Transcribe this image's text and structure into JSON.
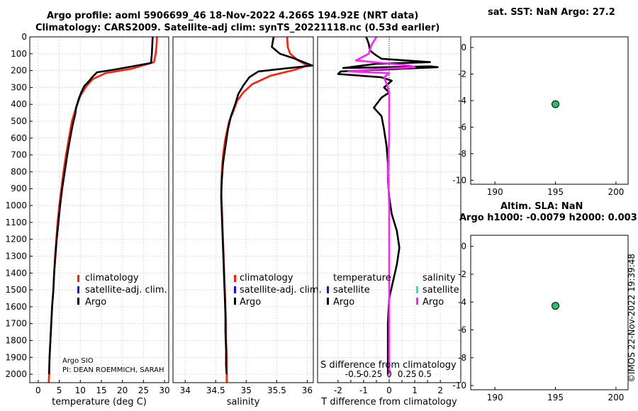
{
  "titles": {
    "line1": "Argo profile: aoml 5906699_46 18-Nov-2022 4.266S 194.92E (NRT data)",
    "line2": "Climatology: CARS2009. Satellite-adj clim: synTS_20221118.nc (0.53d earlier)",
    "sst": "sat. SST: NaN Argo: 27.2",
    "sla1": "Altim. SLA: NaN",
    "sla2": "Argo h1000: -0.0079 h2000: 0.003",
    "timestamp": "©IMOS 22-Nov-2022 19:39:48"
  },
  "annotations": {
    "pi_line1": "Argo SIO",
    "pi_line2": "PI: DEAN ROEMMICH, SARAH",
    "sdiff_title": "S difference from climatology"
  },
  "colors": {
    "climatology": "#ff2010",
    "satellite": "#1010ff",
    "argo": "#000000",
    "salinity_sat": "#20e0e0",
    "salinity_argo": "#ff20ff",
    "dot": "#20c070"
  },
  "legends": {
    "panel1": [
      "climatology",
      "satellite-adj. clim.",
      "Argo"
    ],
    "panel2": [
      "climatology",
      "satellite-adj. clim.",
      "Argo"
    ],
    "panel3_temp_header": "temperature",
    "panel3_temp": [
      "satellite",
      "Argo"
    ],
    "panel3_sal_header": "salinity",
    "panel3_sal": [
      "satellite",
      "Argo"
    ]
  },
  "chart_data": [
    {
      "type": "line",
      "name": "temperature",
      "xlabel": "temperature (deg C)",
      "ylabel": "",
      "xlim": [
        -2,
        31
      ],
      "ylim": [
        2050,
        0
      ],
      "xticks": [
        0,
        5,
        10,
        15,
        20,
        25,
        30
      ],
      "xtick_labels": [
        "0",
        "5",
        "10",
        "15",
        "20",
        "25",
        "30"
      ],
      "yticks": [
        0,
        100,
        200,
        300,
        400,
        500,
        600,
        700,
        800,
        900,
        1000,
        1100,
        1200,
        1300,
        1400,
        1500,
        1600,
        1700,
        1800,
        1900,
        2000
      ],
      "ytick_labels": [
        "0",
        "100",
        "200",
        "300",
        "400",
        "500",
        "600",
        "700",
        "800",
        "900",
        "1000",
        "1100",
        "1200",
        "1300",
        "1400",
        "1500",
        "1600",
        "1700",
        "1800",
        "1900",
        "2000"
      ],
      "grid": true,
      "series": [
        {
          "name": "climatology",
          "color": "#ff2010",
          "points": [
            [
              28.2,
              0
            ],
            [
              28.1,
              50
            ],
            [
              27.9,
              100
            ],
            [
              27.5,
              150
            ],
            [
              22,
              190
            ],
            [
              16,
              215
            ],
            [
              13,
              250
            ],
            [
              11.5,
              290
            ],
            [
              10,
              350
            ],
            [
              9.3,
              400
            ],
            [
              8.6,
              450
            ],
            [
              8,
              500
            ],
            [
              7.3,
              600
            ],
            [
              6.6,
              700
            ],
            [
              6,
              800
            ],
            [
              5.5,
              900
            ],
            [
              5,
              1000
            ],
            [
              4.6,
              1100
            ],
            [
              4.3,
              1200
            ],
            [
              4,
              1300
            ],
            [
              3.8,
              1400
            ],
            [
              3.6,
              1500
            ],
            [
              3.3,
              1600
            ],
            [
              3.1,
              1700
            ],
            [
              2.9,
              1800
            ],
            [
              2.7,
              1900
            ],
            [
              2.6,
              2000
            ],
            [
              2.5,
              2050
            ]
          ]
        },
        {
          "name": "Argo",
          "color": "#000000",
          "points": [
            [
              27.2,
              0
            ],
            [
              27.1,
              50
            ],
            [
              27,
              100
            ],
            [
              26.8,
              155
            ],
            [
              18,
              195
            ],
            [
              14,
              210
            ],
            [
              12.8,
              240
            ],
            [
              11.8,
              270
            ],
            [
              11,
              290
            ],
            [
              10.2,
              330
            ],
            [
              9.6,
              370
            ],
            [
              9,
              420
            ],
            [
              8.8,
              460
            ],
            [
              8.2,
              520
            ],
            [
              7.6,
              600
            ],
            [
              6.9,
              700
            ],
            [
              6.3,
              800
            ],
            [
              5.7,
              900
            ],
            [
              5.2,
              1000
            ],
            [
              4.8,
              1100
            ],
            [
              4.4,
              1200
            ],
            [
              4.1,
              1300
            ],
            [
              3.8,
              1400
            ],
            [
              3.6,
              1500
            ],
            [
              3.3,
              1600
            ],
            [
              3.1,
              1700
            ],
            [
              2.9,
              1800
            ],
            [
              2.7,
              1900
            ],
            [
              2.6,
              2000
            ]
          ]
        }
      ]
    },
    {
      "type": "line",
      "name": "salinity",
      "xlabel": "salinity",
      "ylabel": "",
      "xlim": [
        33.8,
        36.1
      ],
      "ylim": [
        2050,
        0
      ],
      "xticks": [
        34,
        34.5,
        35,
        35.5,
        36
      ],
      "xtick_labels": [
        "34",
        "34.5",
        "35",
        "35.5",
        "36"
      ],
      "grid": true,
      "series": [
        {
          "name": "climatology",
          "color": "#ff2010",
          "points": [
            [
              35.67,
              0
            ],
            [
              35.68,
              60
            ],
            [
              35.72,
              100
            ],
            [
              35.85,
              140
            ],
            [
              36.0,
              170
            ],
            [
              35.8,
              195
            ],
            [
              35.4,
              230
            ],
            [
              35.1,
              280
            ],
            [
              34.95,
              330
            ],
            [
              34.85,
              380
            ],
            [
              34.78,
              450
            ],
            [
              34.72,
              500
            ],
            [
              34.66,
              600
            ],
            [
              34.62,
              700
            ],
            [
              34.6,
              800
            ],
            [
              34.59,
              900
            ],
            [
              34.6,
              1000
            ],
            [
              34.61,
              1100
            ],
            [
              34.62,
              1200
            ],
            [
              34.63,
              1300
            ],
            [
              34.64,
              1400
            ],
            [
              34.65,
              1500
            ],
            [
              34.66,
              1600
            ],
            [
              34.67,
              1700
            ],
            [
              34.67,
              1800
            ],
            [
              34.68,
              1900
            ],
            [
              34.68,
              2000
            ],
            [
              34.68,
              2050
            ]
          ]
        },
        {
          "name": "Argo",
          "color": "#000000",
          "points": [
            [
              35.45,
              0
            ],
            [
              35.42,
              60
            ],
            [
              35.55,
              100
            ],
            [
              35.8,
              130
            ],
            [
              36.08,
              170
            ],
            [
              35.2,
              205
            ],
            [
              35.05,
              240
            ],
            [
              34.95,
              290
            ],
            [
              34.87,
              340
            ],
            [
              34.82,
              400
            ],
            [
              34.75,
              470
            ],
            [
              34.7,
              550
            ],
            [
              34.66,
              650
            ],
            [
              34.62,
              750
            ],
            [
              34.6,
              850
            ],
            [
              34.59,
              950
            ],
            [
              34.6,
              1050
            ],
            [
              34.61,
              1150
            ],
            [
              34.62,
              1250
            ],
            [
              34.63,
              1350
            ],
            [
              34.64,
              1450
            ],
            [
              34.65,
              1550
            ],
            [
              34.66,
              1650
            ],
            [
              34.66,
              1750
            ],
            [
              34.67,
              1850
            ],
            [
              34.67,
              1950
            ],
            [
              34.68,
              2000
            ]
          ]
        }
      ]
    },
    {
      "type": "line",
      "name": "difference",
      "xlabel": "T difference from climatology",
      "top_xlabel": "S difference from climatology",
      "xlim": [
        -2.8,
        2.8
      ],
      "ylim": [
        2050,
        0
      ],
      "xticks": [
        -2,
        -1.5,
        -1,
        -0.5,
        0,
        0.5,
        1,
        1.5,
        2
      ],
      "xtick_labels": [
        "-2",
        "",
        "-1",
        "",
        "0",
        "",
        "1",
        "",
        "2"
      ],
      "top_xticks": [
        -1.4,
        -0.7,
        0,
        0.7,
        1.4
      ],
      "top_xtick_labels": [
        "-0.5",
        "-0.25",
        "0",
        "0.25",
        "0.5"
      ],
      "grid": true,
      "series": [
        {
          "name": "T diff Argo",
          "color": "#000000",
          "points": [
            [
              -0.9,
              0
            ],
            [
              -0.8,
              40
            ],
            [
              -0.75,
              80
            ],
            [
              -0.6,
              100
            ],
            [
              -0.3,
              130
            ],
            [
              1.6,
              150
            ],
            [
              -0.5,
              160
            ],
            [
              -1.8,
              185
            ],
            [
              1.6,
              175
            ],
            [
              1.9,
              180
            ],
            [
              -1.9,
              205
            ],
            [
              -2.0,
              220
            ],
            [
              -0.3,
              240
            ],
            [
              0.1,
              260
            ],
            [
              -0.2,
              300
            ],
            [
              0.0,
              330
            ],
            [
              -0.3,
              360
            ],
            [
              -0.6,
              420
            ],
            [
              -0.3,
              470
            ],
            [
              -0.2,
              550
            ],
            [
              -0.1,
              650
            ],
            [
              -0.05,
              750
            ],
            [
              -0.05,
              850
            ],
            [
              0.0,
              950
            ],
            [
              0.1,
              1050
            ],
            [
              0.3,
              1150
            ],
            [
              0.4,
              1250
            ],
            [
              0.3,
              1350
            ],
            [
              0.15,
              1450
            ],
            [
              0.0,
              1550
            ],
            [
              -0.05,
              1700
            ],
            [
              -0.05,
              1850
            ],
            [
              -0.05,
              2000
            ]
          ]
        },
        {
          "name": "S diff Argo",
          "color": "#ff20ff",
          "points": [
            [
              -0.5,
              0
            ],
            [
              -0.7,
              50
            ],
            [
              -0.8,
              100
            ],
            [
              -1.3,
              140
            ],
            [
              0.8,
              170
            ],
            [
              1.0,
              180
            ],
            [
              -0.3,
              190
            ],
            [
              -1.6,
              205
            ],
            [
              0.0,
              215
            ],
            [
              -0.2,
              240
            ],
            [
              -0.1,
              280
            ],
            [
              0.0,
              330
            ],
            [
              0.0,
              400
            ],
            [
              0.0,
              500
            ],
            [
              0.0,
              600
            ],
            [
              -0.05,
              800
            ],
            [
              0.0,
              1000
            ],
            [
              0.0,
              1200
            ],
            [
              0.0,
              1500
            ],
            [
              0.0,
              1800
            ],
            [
              0.0,
              2000
            ]
          ]
        }
      ]
    },
    {
      "type": "scatter",
      "name": "sst-location",
      "xlim": [
        188,
        201
      ],
      "ylim": [
        -10.3,
        0.8
      ],
      "xticks": [
        190,
        195,
        200
      ],
      "xtick_labels": [
        "190",
        "195",
        "200"
      ],
      "yticks": [
        0,
        -2,
        -4,
        -6,
        -8,
        -10
      ],
      "ytick_labels": [
        "0",
        "-2",
        "-4",
        "-6",
        "-8",
        "-10"
      ],
      "points": [
        {
          "x": 195,
          "y": -4.27
        }
      ]
    },
    {
      "type": "scatter",
      "name": "sla-location",
      "xlim": [
        188,
        201
      ],
      "ylim": [
        -10.3,
        0.8
      ],
      "xticks": [
        190,
        195,
        200
      ],
      "xtick_labels": [
        "190",
        "195",
        "200"
      ],
      "yticks": [
        0,
        -2,
        -4,
        -6,
        -8,
        -10
      ],
      "ytick_labels": [
        "0",
        "-2",
        "-4",
        "-6",
        "-8",
        "-10"
      ],
      "points": [
        {
          "x": 195,
          "y": -4.27
        }
      ]
    }
  ]
}
